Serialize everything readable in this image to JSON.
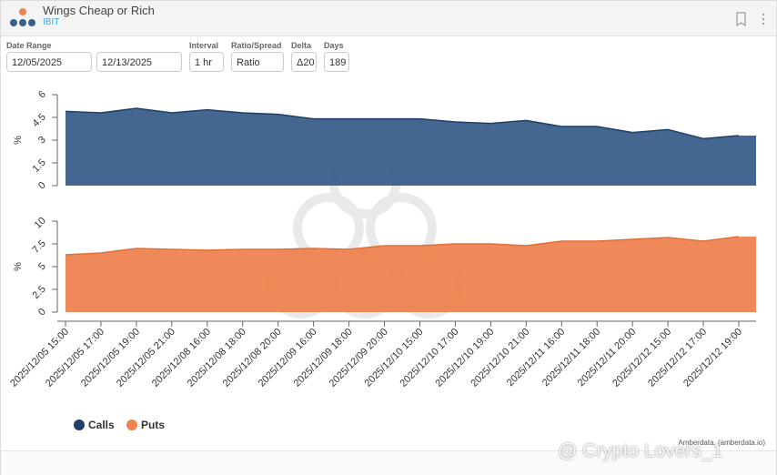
{
  "header": {
    "title": "Wings Cheap or Rich",
    "subtitle": "IBIT"
  },
  "filters": [
    {
      "label": "Date Range",
      "values": [
        "12/05/2025",
        "12/13/2025"
      ]
    },
    {
      "label": "Interval",
      "values": [
        "1 hr"
      ]
    },
    {
      "label": "Ratio/Spread",
      "values": [
        "Ratio"
      ]
    },
    {
      "label": "Delta",
      "values": [
        "Δ20"
      ]
    },
    {
      "label": "Days",
      "values": [
        "189"
      ]
    }
  ],
  "chart_data": [
    {
      "type": "area",
      "y_label": "%",
      "ylim": [
        0,
        6
      ],
      "yticks": [
        0,
        1.5,
        3,
        4.5,
        6
      ],
      "series": [
        {
          "name": "Calls",
          "color": "#3a5f8b",
          "values": [
            4.9,
            4.8,
            5.1,
            4.8,
            5.0,
            4.8,
            4.7,
            4.4,
            4.4,
            4.4,
            4.4,
            4.2,
            4.1,
            4.3,
            3.9,
            3.9,
            3.5,
            3.7,
            3.1,
            3.3
          ]
        }
      ]
    },
    {
      "type": "area",
      "y_label": "%",
      "ylim": [
        0,
        10
      ],
      "yticks": [
        0,
        2.5,
        5,
        7.5,
        10
      ],
      "categories": [
        "2025/12/05 15:00",
        "2025/12/05 17:00",
        "2025/12/05 19:00",
        "2025/12/05 21:00",
        "2025/12/08 16:00",
        "2025/12/08 18:00",
        "2025/12/08 20:00",
        "2025/12/09 16:00",
        "2025/12/09 18:00",
        "2025/12/09 20:00",
        "2025/12/10 15:00",
        "2025/12/10 17:00",
        "2025/12/10 19:00",
        "2025/12/10 21:00",
        "2025/12/11 16:00",
        "2025/12/11 18:00",
        "2025/12/11 20:00",
        "2025/12/12 15:00",
        "2025/12/12 17:00",
        "2025/12/12 19:00"
      ],
      "series": [
        {
          "name": "Puts",
          "color": "#ef8350",
          "values": [
            6.3,
            6.5,
            7.0,
            6.9,
            6.8,
            6.9,
            6.9,
            7.0,
            6.9,
            7.3,
            7.3,
            7.5,
            7.5,
            7.3,
            7.8,
            7.8,
            8.0,
            8.2,
            7.8,
            8.3
          ]
        }
      ]
    }
  ],
  "credit": "Amberdata, (amberdata.io)",
  "watermark": "@ Crypto Lovers_1"
}
